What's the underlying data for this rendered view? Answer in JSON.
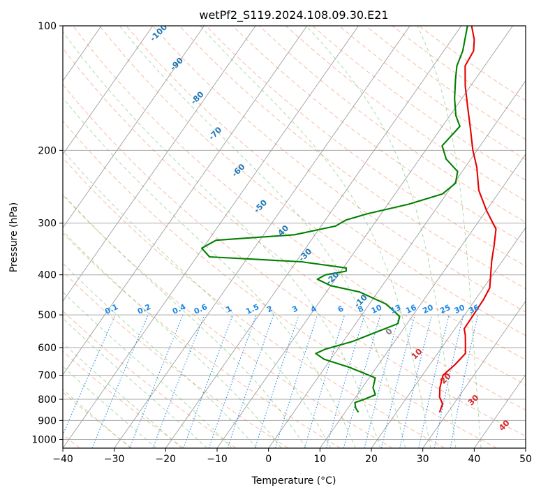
{
  "chart_data": {
    "type": "skew-t",
    "title": "wetPf2_S119.2024.108.09.30.E21",
    "xlabel": "Temperature (°C)",
    "ylabel": "Pressure (hPa)",
    "xlim": [
      -40,
      50
    ],
    "ylim": [
      1050,
      100
    ],
    "y_scale": "log",
    "grid": true,
    "x_ticks": [
      "−40",
      "−30",
      "−20",
      "−10",
      "0",
      "10",
      "20",
      "30",
      "40",
      "50"
    ],
    "y_ticks": [
      {
        "p": 100,
        "label": "100"
      },
      {
        "p": 200,
        "label": "200"
      },
      {
        "p": 300,
        "label": "300"
      },
      {
        "p": 400,
        "label": "400"
      },
      {
        "p": 500,
        "label": "500"
      },
      {
        "p": 600,
        "label": "600"
      },
      {
        "p": 700,
        "label": "700"
      },
      {
        "p": 800,
        "label": "800"
      },
      {
        "p": 900,
        "label": "900"
      },
      {
        "p": 1000,
        "label": "1000"
      }
    ],
    "series": [
      {
        "kind": "temperature",
        "color": "#e60000",
        "points": [
          {
            "p": 860,
            "t": 28.4
          },
          {
            "p": 820,
            "t": 27.8
          },
          {
            "p": 790,
            "t": 26.3
          },
          {
            "p": 750,
            "t": 25.1
          },
          {
            "p": 700,
            "t": 24.0
          },
          {
            "p": 660,
            "t": 24.9
          },
          {
            "p": 620,
            "t": 25.4
          },
          {
            "p": 590,
            "t": 24.2
          },
          {
            "p": 560,
            "t": 22.9
          },
          {
            "p": 540,
            "t": 21.8
          },
          {
            "p": 500,
            "t": 21.7
          },
          {
            "p": 460,
            "t": 21.6
          },
          {
            "p": 430,
            "t": 21.2
          },
          {
            "p": 400,
            "t": 19.6
          },
          {
            "p": 370,
            "t": 17.9
          },
          {
            "p": 340,
            "t": 16.3
          },
          {
            "p": 310,
            "t": 14.4
          },
          {
            "p": 280,
            "t": 10.1
          },
          {
            "p": 250,
            "t": 5.8
          },
          {
            "p": 220,
            "t": 2.3
          },
          {
            "p": 200,
            "t": -0.8
          },
          {
            "p": 175,
            "t": -4.6
          },
          {
            "p": 160,
            "t": -7.2
          },
          {
            "p": 140,
            "t": -11.0
          },
          {
            "p": 125,
            "t": -13.8
          },
          {
            "p": 115,
            "t": -14.2
          },
          {
            "p": 108,
            "t": -15.6
          },
          {
            "p": 100,
            "t": -18.0
          }
        ]
      },
      {
        "kind": "dewpoint",
        "color": "#008000",
        "points": [
          {
            "p": 860,
            "t": 12.6
          },
          {
            "p": 840,
            "t": 11.5
          },
          {
            "p": 815,
            "t": 10.6
          },
          {
            "p": 800,
            "t": 12.0
          },
          {
            "p": 780,
            "t": 13.5
          },
          {
            "p": 750,
            "t": 12.1
          },
          {
            "p": 710,
            "t": 11.2
          },
          {
            "p": 670,
            "t": 4.8
          },
          {
            "p": 640,
            "t": -1.3
          },
          {
            "p": 620,
            "t": -3.7
          },
          {
            "p": 605,
            "t": -2.4
          },
          {
            "p": 580,
            "t": 1.8
          },
          {
            "p": 550,
            "t": 5.2
          },
          {
            "p": 525,
            "t": 8.2
          },
          {
            "p": 505,
            "t": 7.6
          },
          {
            "p": 490,
            "t": 5.8
          },
          {
            "p": 470,
            "t": 3.1
          },
          {
            "p": 440,
            "t": -3.6
          },
          {
            "p": 425,
            "t": -10.0
          },
          {
            "p": 410,
            "t": -13.5
          },
          {
            "p": 400,
            "t": -12.5
          },
          {
            "p": 392,
            "t": -9.0
          },
          {
            "p": 385,
            "t": -9.4
          },
          {
            "p": 372,
            "t": -19.0
          },
          {
            "p": 362,
            "t": -37.5
          },
          {
            "p": 345,
            "t": -40.2
          },
          {
            "p": 330,
            "t": -38.5
          },
          {
            "p": 320,
            "t": -24.0
          },
          {
            "p": 305,
            "t": -17.2
          },
          {
            "p": 295,
            "t": -16.0
          },
          {
            "p": 285,
            "t": -12.8
          },
          {
            "p": 270,
            "t": -6.0
          },
          {
            "p": 255,
            "t": -0.8
          },
          {
            "p": 240,
            "t": 0.3
          },
          {
            "p": 225,
            "t": -0.9
          },
          {
            "p": 210,
            "t": -4.8
          },
          {
            "p": 195,
            "t": -7.4
          },
          {
            "p": 175,
            "t": -6.6
          },
          {
            "p": 165,
            "t": -8.8
          },
          {
            "p": 150,
            "t": -11.4
          },
          {
            "p": 135,
            "t": -13.8
          },
          {
            "p": 125,
            "t": -15.4
          },
          {
            "p": 115,
            "t": -16.3
          },
          {
            "p": 100,
            "t": -18.8
          }
        ]
      }
    ],
    "dry_adiabat_labels": [
      {
        "text": "-100",
        "p": 105,
        "x": -21
      },
      {
        "text": "-90",
        "p": 125,
        "x": -17.5
      },
      {
        "text": "-80",
        "p": 151,
        "x": -13.5
      },
      {
        "text": "-70",
        "p": 184,
        "x": -10.0
      },
      {
        "text": "-60",
        "p": 226,
        "x": -5.5
      },
      {
        "text": "-50",
        "p": 276,
        "x": -1.2
      },
      {
        "text": "-40",
        "p": 318,
        "x": 3.0
      },
      {
        "text": "-30",
        "p": 362,
        "x": 7.5
      },
      {
        "text": "-20",
        "p": 412,
        "x": 12.8
      },
      {
        "text": "-10",
        "p": 468,
        "x": 18.3
      },
      {
        "text": "0",
        "p": 555,
        "x": 23.8
      },
      {
        "text": "10",
        "p": 628,
        "x": 29.2
      },
      {
        "text": "20",
        "p": 720,
        "x": 34.8
      },
      {
        "text": "30",
        "p": 812,
        "x": 40.2
      },
      {
        "text": "40",
        "p": 935,
        "x": 46.2
      }
    ],
    "mixing_ratio_labels": [
      "0.1",
      "0.2",
      "0.4",
      "0.6",
      "1",
      "1.5",
      "2",
      "3",
      "4",
      "6",
      "8",
      "10",
      "13",
      "16",
      "20",
      "25",
      "30",
      "36"
    ],
    "colors": {
      "temperature": "#e60000",
      "dewpoint": "#008000",
      "isotherms": "#808080",
      "dry_adiabats": "#f4a582",
      "moist_adiabats": "#66bd63",
      "mixing_ratio": "#1e88e5",
      "dry_labels_cold": "#1f77b4",
      "dry_labels_warm": "#d62728",
      "zero_label": "#808080"
    }
  }
}
